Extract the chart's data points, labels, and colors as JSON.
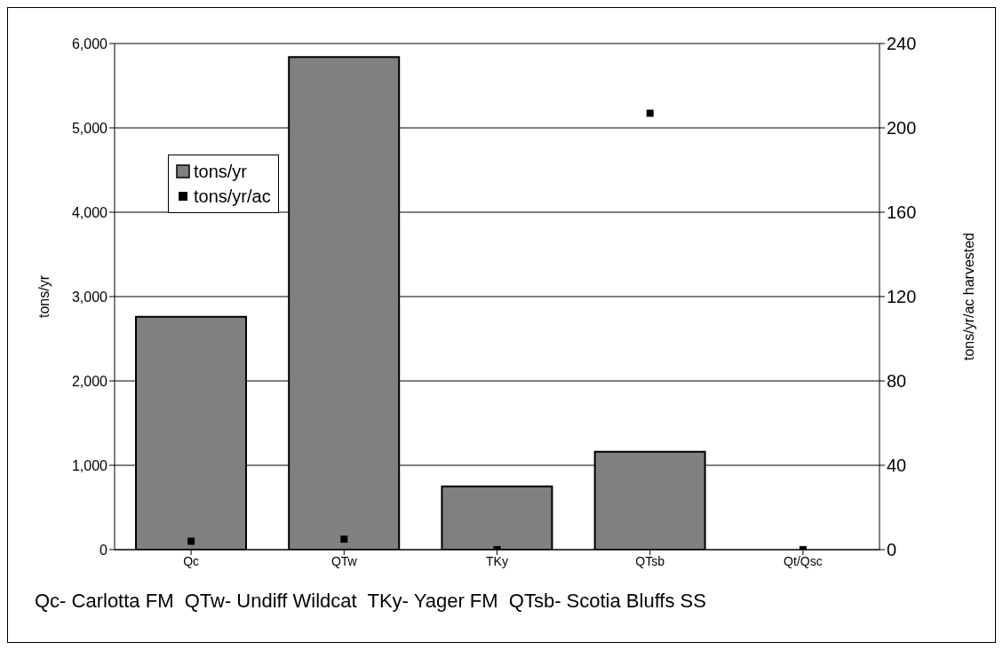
{
  "chart_data": {
    "type": "bar",
    "categories": [
      "Qc",
      "QTw",
      "TKy",
      "QTsb",
      "Qt/Qsc"
    ],
    "series": [
      {
        "name": "tons/yr",
        "type": "bar",
        "color": "#808080",
        "values": [
          2760,
          5840,
          750,
          1160,
          0
        ]
      },
      {
        "name": "tons/yr/ac",
        "type": "scatter",
        "axis": "y2",
        "color": "#000000",
        "marker": "square",
        "values": [
          4,
          5,
          0,
          207,
          0
        ]
      }
    ],
    "ylabel": "tons/yr",
    "y2label": "tons/yr/ac harvested",
    "ylim": [
      0,
      6000
    ],
    "yticks": [
      {
        "value": 0,
        "label": "0"
      },
      {
        "value": 1000,
        "label": "1,000"
      },
      {
        "value": 2000,
        "label": "2,000"
      },
      {
        "value": 3000,
        "label": "3,000"
      },
      {
        "value": 4000,
        "label": "4,000"
      },
      {
        "value": 5000,
        "label": "5,000"
      },
      {
        "value": 6000,
        "label": "6,000"
      }
    ],
    "y2lim": [
      0,
      240
    ],
    "y2ticks": [
      0,
      40,
      80,
      120,
      160,
      200,
      240
    ],
    "grid": "y",
    "legend": "top left",
    "annotations": [
      "Qc- Carlotta FM  QTw- Undiff Wildcat  TKy- Yager FM  QTsb- Scotia Bluffs SS"
    ]
  }
}
